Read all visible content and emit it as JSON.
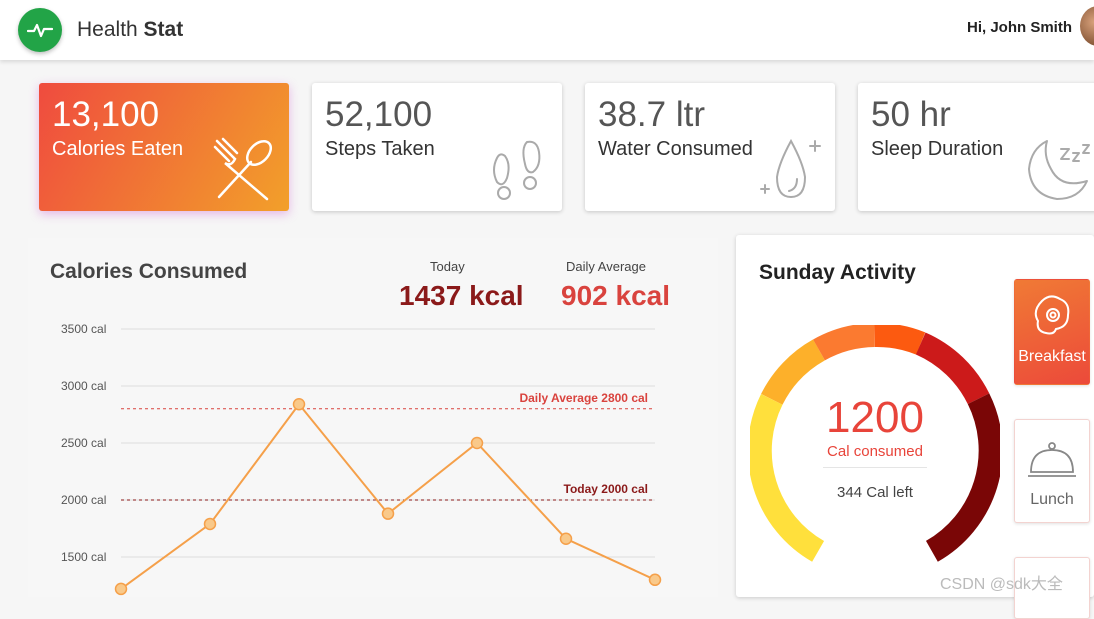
{
  "header": {
    "app_name_light": "Health",
    "app_name_bold": "Stat",
    "greeting": "Hi, John Smith"
  },
  "stats": [
    {
      "value": "13,100",
      "label": "Calories Eaten",
      "icon": "fork-spoon-icon"
    },
    {
      "value": "52,100",
      "label": "Steps Taken",
      "icon": "footprints-icon"
    },
    {
      "value": "38.7 ltr",
      "label": "Water Consumed",
      "icon": "water-drop-icon"
    },
    {
      "value": "50 hr",
      "label": "Sleep Duration",
      "icon": "moon-sleep-icon"
    }
  ],
  "calories_panel": {
    "title": "Calories Consumed",
    "today_caption": "Today",
    "today_value": "1437 kcal",
    "avg_caption": "Daily Average",
    "avg_value": "902 kcal"
  },
  "chart_data": {
    "type": "line",
    "x": [
      1,
      2,
      3,
      4,
      5,
      6,
      7
    ],
    "values": [
      1220,
      1790,
      2840,
      1880,
      2500,
      1660,
      1300
    ],
    "y_ticks": [
      "3500 cal",
      "3000 cal",
      "2500 cal",
      "2000 cal",
      "1500 cal"
    ],
    "ylim": [
      1300,
      3600
    ],
    "grid": true,
    "reference_lines": [
      {
        "label": "Daily Average 2800 cal",
        "value": 2800,
        "color": "#d9433e"
      },
      {
        "label": "Today 2000 cal",
        "value": 2000,
        "color": "#8b1a1a"
      }
    ],
    "line_color": "#f5a04a",
    "point_fill": "#f9c98a"
  },
  "activity": {
    "title": "Sunday Activity",
    "gauge_value": "1200",
    "gauge_caption": "Cal consumed",
    "gauge_left": "344 Cal left",
    "meals": [
      {
        "label": "Breakfast",
        "icon": "fried-egg-icon",
        "active": true
      },
      {
        "label": "Lunch",
        "icon": "cloche-icon",
        "active": false
      }
    ]
  },
  "colors": {
    "accent_green": "#22a447",
    "today_red": "#8b1a1a",
    "average_red": "#d9433e",
    "gauge_value": "#e8443a"
  },
  "watermark": "CSDN @sdk大全"
}
